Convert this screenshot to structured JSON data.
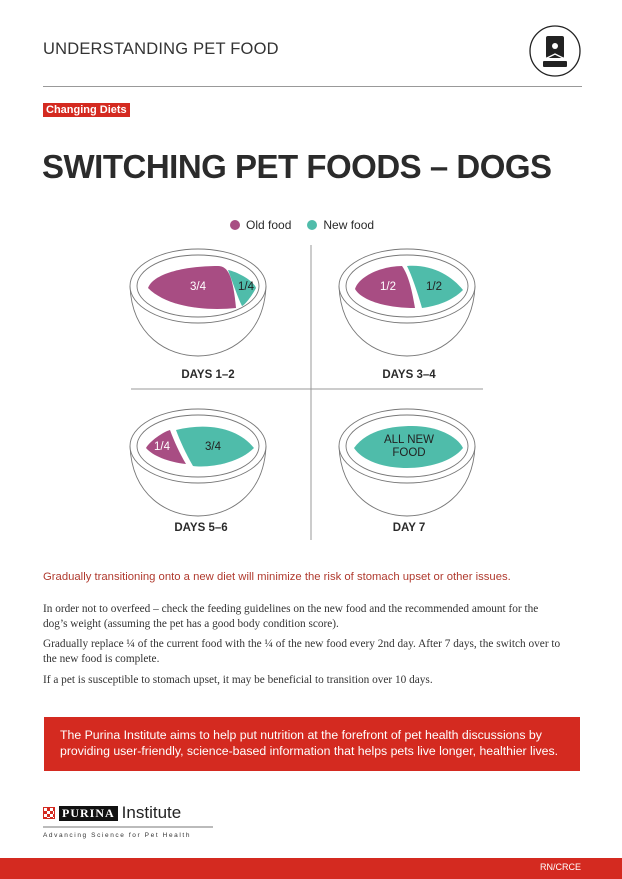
{
  "header": {
    "title": "UNDERSTANDING PET FOOD",
    "icon": "pet-food-bag-icon"
  },
  "badge": "Changing Diets",
  "title": "SWITCHING PET FOODS – DOGS",
  "legend": [
    {
      "label": "Old food",
      "color": "#a84d83"
    },
    {
      "label": "New food",
      "color": "#4fbcaa"
    }
  ],
  "stages": [
    {
      "label": "DAYS 1–2",
      "old": "3/4",
      "new": "1/4"
    },
    {
      "label": "DAYS 3–4",
      "old": "1/2",
      "new": "1/2"
    },
    {
      "label": "DAYS 5–6",
      "old": "1/4",
      "new": "3/4"
    },
    {
      "label": "DAY 7",
      "new_line1": "ALL NEW",
      "new_line2": "FOOD"
    }
  ],
  "lead": "Gradually transitioning onto a new diet will minimize the risk of stomach upset or other issues.",
  "paragraphs": [
    "In order not to overfeed – check the feeding guidelines on the new food and the recommended amount for the dog’s weight (assuming the pet has a good body condition score).",
    "Gradually replace ¼ of the current food with the ¼ of the new food every 2nd day. After 7 days, the switch over to the new food is complete.",
    "If a pet is susceptible to stomach upset, it may be beneficial to transition over 10 days."
  ],
  "callout": "The Purina Institute aims to help put nutrition at the forefront of pet health discussions by providing user-friendly, science-based information that helps pets live longer, healthier lives.",
  "logo": {
    "brand": "PURINA",
    "name": "Institute",
    "tagline": "Advancing Science for Pet Health"
  },
  "footer": {
    "code": "RN/CRCE"
  }
}
